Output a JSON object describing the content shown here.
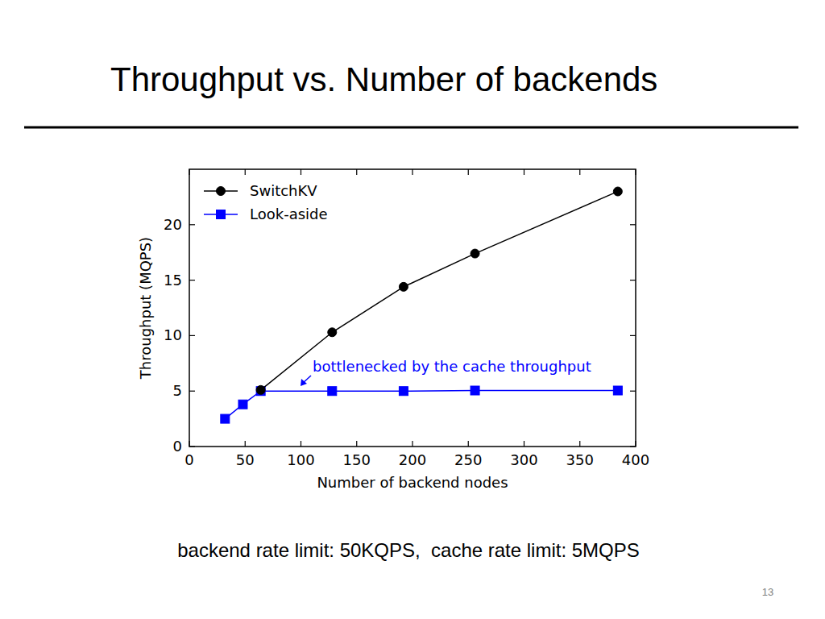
{
  "chart_data": {
    "type": "line",
    "title": "Throughput vs. Number of backends",
    "x_label": "Number of backend nodes",
    "y_label": "Throughput (MQPS)",
    "x": [
      32,
      48,
      64,
      128,
      192,
      256,
      384
    ],
    "series": [
      {
        "name": "SwitchKV",
        "color": "#000000",
        "marker": "circle",
        "line_style": "solid",
        "values": [
          null,
          null,
          5.1,
          10.3,
          14.4,
          17.4,
          23.0
        ]
      },
      {
        "name": "Look-aside",
        "color": "#0000ff",
        "marker": "square",
        "line_style": "solid",
        "values": [
          2.5,
          3.8,
          5.0,
          5.0,
          5.0,
          5.05,
          5.05
        ]
      }
    ],
    "xlim": [
      0,
      400
    ],
    "xticks": [
      0,
      50,
      100,
      150,
      200,
      250,
      300,
      350,
      400
    ],
    "ylim": [
      0,
      25
    ],
    "yticks": [
      0,
      5,
      10,
      15,
      20
    ],
    "grid": false,
    "legend": "upper left",
    "annotations": [
      "bottlenecked by the cache throughput"
    ]
  },
  "slide": {
    "caption": "backend rate limit: 50KQPS,  cache rate limit: 5MQPS",
    "page_number": "13"
  }
}
